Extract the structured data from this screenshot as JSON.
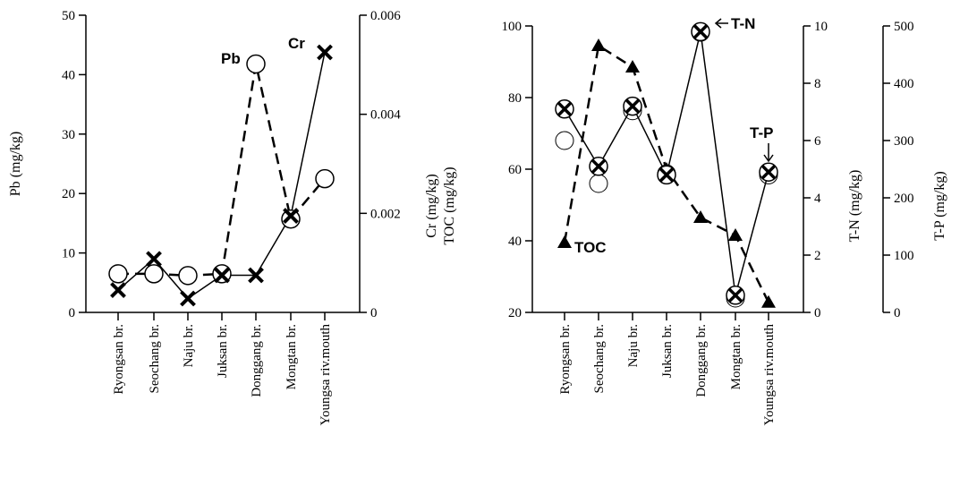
{
  "chart_data": [
    {
      "type": "line",
      "categories": [
        "Ryongsan br.",
        "Seochang br.",
        "Naju br.",
        "Juksan br.",
        "Donggang  br.",
        "Mongtan br.",
        "Youngsa riv.mouth"
      ],
      "series": [
        {
          "name": "Pb",
          "axis": "left",
          "dash": true,
          "marker": "circle",
          "values": [
            6.5,
            6.5,
            6.2,
            6.5,
            41.8,
            15.7,
            22.5
          ]
        },
        {
          "name": "Cr",
          "axis": "right",
          "dash": false,
          "marker": "x",
          "values": [
            0.00045,
            0.00108,
            0.00028,
            0.00075,
            0.00075,
            0.00195,
            0.00525
          ]
        }
      ],
      "axes": {
        "left": {
          "label": "Pb (mg/kg)",
          "min": 0,
          "max": 50,
          "ticks": [
            "0",
            "10",
            "20",
            "30",
            "40",
            "50"
          ]
        },
        "right": {
          "label": "Cr (mg/kg)",
          "min": 0,
          "max": 0.006,
          "ticks": [
            "0",
            "0.002",
            "0.004",
            "0.006"
          ]
        }
      },
      "annotations": [
        {
          "text": "Pb",
          "series": "Pb"
        },
        {
          "text": "Cr",
          "series": "Cr"
        }
      ]
    },
    {
      "type": "line",
      "categories": [
        "Ryongsan br.",
        "Seochang br.",
        "Naju br.",
        "Juksan br.",
        "Donggang  br.",
        "Mongtan br.",
        "Youngsa riv.mouth"
      ],
      "series": [
        {
          "name": "TOC",
          "axis": "toc",
          "dash": true,
          "marker": "triangle",
          "values": [
            39.5,
            94.5,
            88.5,
            60,
            46.5,
            41.5,
            22.8
          ]
        },
        {
          "name": "T-N",
          "axis": "tn",
          "dash": false,
          "marker": "circle-x",
          "values": [
            7.1,
            5.1,
            7.2,
            4.8,
            9.8,
            0.6,
            4.9
          ]
        },
        {
          "name": "T-P",
          "axis": "tp",
          "dash": false,
          "marker": "none",
          "values": [
            300,
            225,
            352,
            242,
            489,
            25,
            240
          ]
        }
      ],
      "axes": {
        "toc": {
          "label": "TOC (mg/kg)",
          "min": 20,
          "max": 100,
          "ticks": [
            "20",
            "40",
            "60",
            "80",
            "100"
          ]
        },
        "tn": {
          "label": "T-N (mg/kg)",
          "min": 0,
          "max": 10,
          "ticks": [
            "0",
            "2",
            "4",
            "6",
            "8",
            "10"
          ]
        },
        "tp": {
          "label": "T-P (mg/kg)",
          "min": 0,
          "max": 500,
          "ticks": [
            "0",
            "100",
            "200",
            "300",
            "400",
            "500"
          ]
        }
      },
      "annotations": [
        {
          "text": "TOC",
          "series": "TOC"
        },
        {
          "text": "T-N",
          "series": "T-N"
        },
        {
          "text": "T-P",
          "series": "T-P"
        }
      ]
    }
  ]
}
